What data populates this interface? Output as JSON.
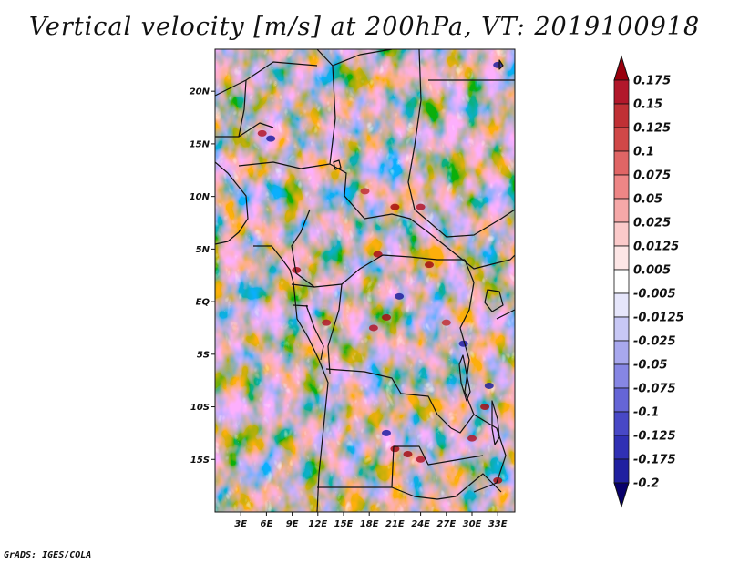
{
  "title": "Vertical velocity [m/s] at 200hPa, VT: 2019100918",
  "credit": "GrADS: IGES/COLA",
  "map": {
    "lon_range": [
      0,
      35
    ],
    "lat_range": [
      -20,
      24
    ],
    "lat_labels": [
      {
        "lat": 20,
        "text": "20N"
      },
      {
        "lat": 15,
        "text": "15N"
      },
      {
        "lat": 10,
        "text": "10N"
      },
      {
        "lat": 5,
        "text": "5N"
      },
      {
        "lat": 0,
        "text": "EQ"
      },
      {
        "lat": -5,
        "text": "5S"
      },
      {
        "lat": -10,
        "text": "10S"
      },
      {
        "lat": -15,
        "text": "15S"
      }
    ],
    "lon_labels": [
      {
        "lon": 3,
        "text": "3E"
      },
      {
        "lon": 6,
        "text": "6E"
      },
      {
        "lon": 9,
        "text": "9E"
      },
      {
        "lon": 12,
        "text": "12E"
      },
      {
        "lon": 15,
        "text": "15E"
      },
      {
        "lon": 18,
        "text": "18E"
      },
      {
        "lon": 21,
        "text": "21E"
      },
      {
        "lon": 24,
        "text": "24E"
      },
      {
        "lon": 27,
        "text": "27E"
      },
      {
        "lon": 30,
        "text": "30E"
      },
      {
        "lon": 33,
        "text": "33E"
      }
    ]
  },
  "colorbar": {
    "levels": [
      {
        "label": "0.175",
        "color": "#a50f15"
      },
      {
        "label": "0.15",
        "color": "#b2182b"
      },
      {
        "label": "0.125",
        "color": "#c03035"
      },
      {
        "label": "0.1",
        "color": "#d04848"
      },
      {
        "label": "0.075",
        "color": "#e06565"
      },
      {
        "label": "0.05",
        "color": "#ee8686"
      },
      {
        "label": "0.025",
        "color": "#f5a8a8"
      },
      {
        "label": "0.0125",
        "color": "#fbcaca"
      },
      {
        "label": "0.005",
        "color": "#fde6e6"
      },
      {
        "label": "-0.005",
        "color": "#ffffff"
      },
      {
        "label": "-0.0125",
        "color": "#e6e6fb"
      },
      {
        "label": "-0.025",
        "color": "#c8c8f5"
      },
      {
        "label": "-0.05",
        "color": "#a8a8ee"
      },
      {
        "label": "-0.075",
        "color": "#8686e4"
      },
      {
        "label": "-0.1",
        "color": "#6565d6"
      },
      {
        "label": "-0.125",
        "color": "#4848c6"
      },
      {
        "label": "-0.175",
        "color": "#3030b4"
      },
      {
        "label": "-0.2",
        "color": "#2020a0"
      }
    ],
    "top_color": "#99000d",
    "bottom_color": "#08006b"
  }
}
